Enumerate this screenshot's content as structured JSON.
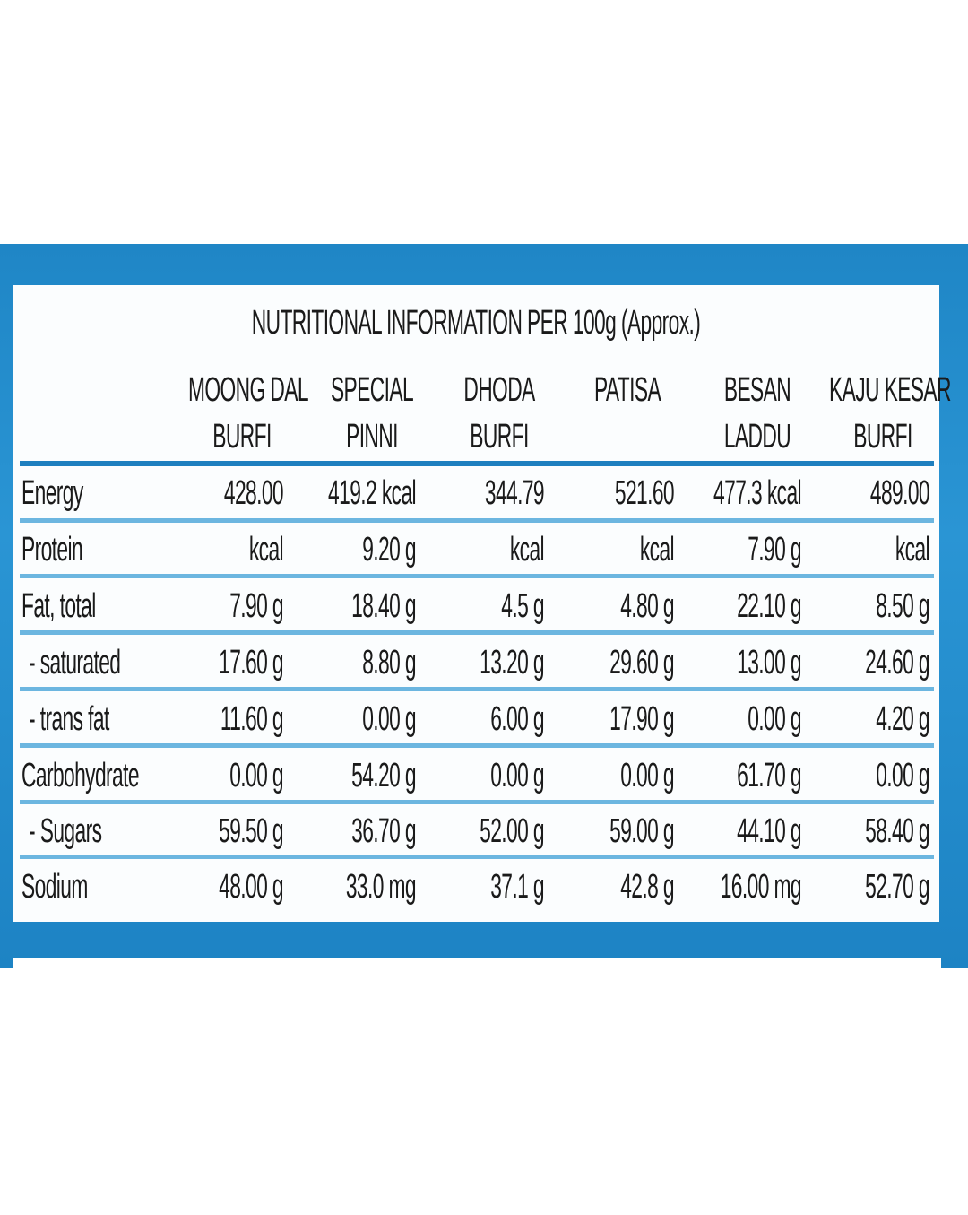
{
  "title": "NUTRITIONAL INFORMATION PER 100g (Approx.)",
  "columns": [
    [
      "MOONG DAL",
      "BURFI"
    ],
    [
      "SPECIAL",
      "PINNI"
    ],
    [
      "DHODA",
      "BURFI"
    ],
    [
      "PATISA",
      ""
    ],
    [
      "BESAN",
      "LADDU"
    ],
    [
      "KAJU KESAR",
      "BURFI"
    ]
  ],
  "rows": [
    {
      "label": "Energy",
      "values": [
        "428.00",
        "419.2 kcal",
        "344.79",
        "521.60",
        "477.3 kcal",
        "489.00"
      ]
    },
    {
      "label": "Protein",
      "values": [
        "kcal",
        "9.20 g",
        "kcal",
        "kcal",
        "7.90 g",
        "kcal"
      ]
    },
    {
      "label": "Fat, total",
      "values": [
        "7.90 g",
        "18.40 g",
        "4.5 g",
        "4.80 g",
        "22.10 g",
        "8.50 g"
      ]
    },
    {
      "label": "- saturated",
      "values": [
        "17.60 g",
        "8.80 g",
        "13.20 g",
        "29.60 g",
        "13.00 g",
        "24.60 g"
      ]
    },
    {
      "label": "- trans fat",
      "values": [
        "11.60 g",
        "0.00 g",
        "6.00 g",
        "17.90 g",
        "0.00 g",
        "4.20 g"
      ]
    },
    {
      "label": "Carbohydrate",
      "values": [
        "0.00 g",
        "54.20 g",
        "0.00 g",
        "0.00 g",
        "61.70 g",
        "0.00 g"
      ]
    },
    {
      "label": "- Sugars",
      "values": [
        "59.50 g",
        "36.70 g",
        "52.00 g",
        "59.00 g",
        "44.10 g",
        "58.40 g"
      ]
    },
    {
      "label": "Sodium",
      "values": [
        "48.00 g",
        "33.0 mg",
        "37.1 g",
        "42.8 g",
        "16.00 mg",
        "52.70 g"
      ]
    }
  ],
  "colors": {
    "panel_blue": "#1f86c6",
    "rule_blue": "#6cb6e0"
  }
}
